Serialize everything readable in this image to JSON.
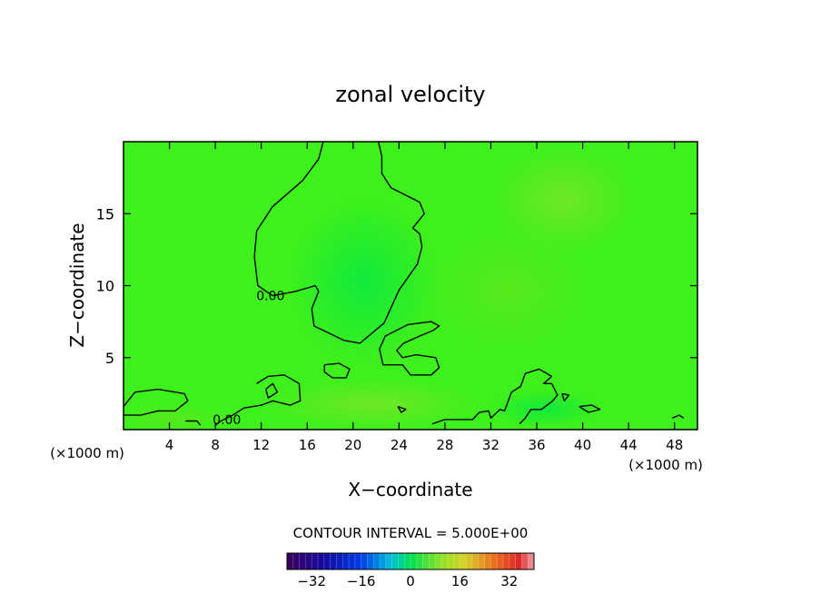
{
  "chart_data": {
    "type": "heatmap",
    "title": "zonal velocity",
    "xlabel": "X−coordinate",
    "ylabel": "Z−coordinate",
    "x_units": "(×1000 m)",
    "x_units_repeat": "(×1000 m)",
    "xlim": [
      0,
      50
    ],
    "ylim": [
      0,
      20
    ],
    "x_ticks": [
      {
        "value": 4,
        "label": "4"
      },
      {
        "value": 8,
        "label": "8"
      },
      {
        "value": 12,
        "label": "12"
      },
      {
        "value": 16,
        "label": "16"
      },
      {
        "value": 20,
        "label": "20"
      },
      {
        "value": 24,
        "label": "24"
      },
      {
        "value": 28,
        "label": "28"
      },
      {
        "value": 32,
        "label": "32"
      },
      {
        "value": 36,
        "label": "36"
      },
      {
        "value": 40,
        "label": "40"
      },
      {
        "value": 44,
        "label": "44"
      },
      {
        "value": 48,
        "label": "48"
      }
    ],
    "y_ticks": [
      {
        "value": 5,
        "label": "5"
      },
      {
        "value": 10,
        "label": "10"
      },
      {
        "value": 15,
        "label": "15"
      }
    ],
    "contour_interval_text": "CONTOUR INTERVAL = 5.000E+00",
    "contour_labels": [
      {
        "text": "0.00",
        "x": 12.8,
        "y": 9.3
      },
      {
        "text": "0.00",
        "x": 9.0,
        "y": 0.7
      }
    ],
    "zero_contours": [
      [
        [
          0,
          1.6
        ],
        [
          1,
          2.6
        ],
        [
          3,
          2.8
        ],
        [
          5.3,
          2.5
        ],
        [
          5.6,
          2.0
        ],
        [
          4.5,
          1.3
        ],
        [
          3,
          1.3
        ],
        [
          1.5,
          1.0
        ],
        [
          0,
          1.0
        ]
      ],
      [
        [
          17.4,
          20
        ],
        [
          17,
          18.8
        ],
        [
          15.6,
          17.3
        ],
        [
          13,
          15.5
        ],
        [
          11.6,
          13.8
        ],
        [
          11.4,
          12
        ],
        [
          11.7,
          10
        ],
        [
          13,
          9.3
        ],
        [
          15,
          9.6
        ],
        [
          16.7,
          10
        ],
        [
          17,
          9.6
        ],
        [
          16.4,
          8.4
        ],
        [
          16.6,
          7.2
        ],
        [
          19.2,
          6.2
        ],
        [
          20.6,
          6.0
        ],
        [
          22.7,
          7.4
        ],
        [
          24,
          9.7
        ],
        [
          25.6,
          11.5
        ],
        [
          26,
          12.7
        ],
        [
          25.8,
          13.6
        ],
        [
          25.2,
          14
        ],
        [
          26.2,
          15
        ],
        [
          25.8,
          15.8
        ],
        [
          23.3,
          16.8
        ],
        [
          22.5,
          17.8
        ],
        [
          22.5,
          19
        ],
        [
          22.2,
          20
        ]
      ],
      [
        [
          22.3,
          5.6
        ],
        [
          22.8,
          6.5
        ],
        [
          24.8,
          7.3
        ],
        [
          26.8,
          7.5
        ],
        [
          27.5,
          7.2
        ],
        [
          27,
          6.9
        ],
        [
          25.8,
          6.5
        ],
        [
          24.4,
          6.0
        ],
        [
          23.8,
          5.5
        ],
        [
          24.3,
          5.0
        ],
        [
          25.5,
          5.2
        ],
        [
          27.2,
          5.0
        ],
        [
          27.5,
          4.3
        ],
        [
          26.8,
          3.8
        ],
        [
          25,
          3.8
        ],
        [
          24.3,
          4.5
        ],
        [
          22.6,
          4.5
        ],
        [
          22.3,
          5.6
        ]
      ],
      [
        [
          17.5,
          4.5
        ],
        [
          18.8,
          4.6
        ],
        [
          19.7,
          4.2
        ],
        [
          19.4,
          3.6
        ],
        [
          18.2,
          3.6
        ],
        [
          17.5,
          4.0
        ],
        [
          17.5,
          4.5
        ]
      ],
      [
        [
          11.6,
          3.2
        ],
        [
          12.6,
          3.7
        ],
        [
          14,
          3.8
        ],
        [
          15.3,
          3.2
        ],
        [
          15.4,
          2.0
        ],
        [
          14.5,
          1.7
        ],
        [
          13,
          2.0
        ],
        [
          12,
          1.7
        ],
        [
          10.5,
          1.5
        ],
        [
          9.5,
          1.0
        ],
        [
          8.5,
          0.6
        ],
        [
          8,
          0.3
        ]
      ],
      [
        [
          12.4,
          2.8
        ],
        [
          13,
          3.2
        ],
        [
          13.4,
          2.6
        ],
        [
          12.6,
          2.2
        ],
        [
          12.4,
          2.8
        ]
      ],
      [
        [
          26.9,
          0.4
        ],
        [
          28,
          0.7
        ],
        [
          30.4,
          0.7
        ],
        [
          31,
          1.2
        ],
        [
          31.8,
          1.3
        ],
        [
          32,
          0.8
        ],
        [
          32.8,
          1.4
        ],
        [
          33.2,
          1.3
        ],
        [
          33.8,
          2.6
        ],
        [
          34.6,
          3.0
        ],
        [
          35,
          3.9
        ],
        [
          36.2,
          4.2
        ],
        [
          37.3,
          3.7
        ],
        [
          36.6,
          3.2
        ],
        [
          37.3,
          3.2
        ],
        [
          37.8,
          2.4
        ],
        [
          37.4,
          2.0
        ],
        [
          36.4,
          1.4
        ],
        [
          35.5,
          1.4
        ],
        [
          35,
          0.8
        ],
        [
          34.5,
          0.4
        ]
      ],
      [
        [
          39.7,
          1.6
        ],
        [
          40.8,
          1.7
        ],
        [
          41.5,
          1.4
        ],
        [
          40.5,
          1.2
        ],
        [
          39.7,
          1.6
        ]
      ],
      [
        [
          38.2,
          2.5
        ],
        [
          38.8,
          2.4
        ],
        [
          38.4,
          2.0
        ],
        [
          38.2,
          2.5
        ]
      ],
      [
        [
          23.9,
          1.6
        ],
        [
          24.6,
          1.4
        ],
        [
          24.2,
          1.2
        ],
        [
          23.9,
          1.6
        ]
      ],
      [
        [
          5.4,
          0.6
        ],
        [
          6.4,
          0.6
        ],
        [
          6.7,
          0.3
        ]
      ],
      [
        [
          47.8,
          0.8
        ],
        [
          48.4,
          1.0
        ],
        [
          48.8,
          0.8
        ]
      ]
    ],
    "colorbar": {
      "vmin": -40,
      "vmax": 40,
      "step": 2,
      "ticks": [
        {
          "value": -32,
          "label": "−32"
        },
        {
          "value": -16,
          "label": "−16"
        },
        {
          "value": 0,
          "label": "0"
        },
        {
          "value": 16,
          "label": "16"
        },
        {
          "value": 32,
          "label": "32"
        }
      ]
    },
    "grid": false,
    "legend": "colorbar bottom-center"
  }
}
